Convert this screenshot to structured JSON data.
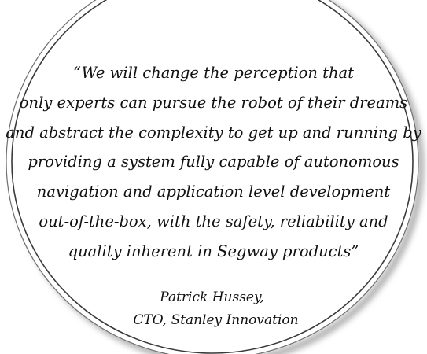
{
  "quote": {
    "lines": [
      "“We will change the perception that",
      "only experts can pursue the robot of their dreams",
      "and abstract the complexity to get up and running by",
      "providing a system fully capable of autonomous",
      "navigation and application level development",
      "out-of-the-box, with the safety, reliability and",
      "quality inherent in Segway products”"
    ]
  },
  "attribution": {
    "name": "Patrick Hussey,",
    "title": "CTO, Stanley Innovation"
  },
  "colors": {
    "background": "#ffffff",
    "ring_outer": "#6e6e6e",
    "ring_inner": "#3a3a3a",
    "shadow": "#9a9a9a",
    "text": "#111111"
  }
}
